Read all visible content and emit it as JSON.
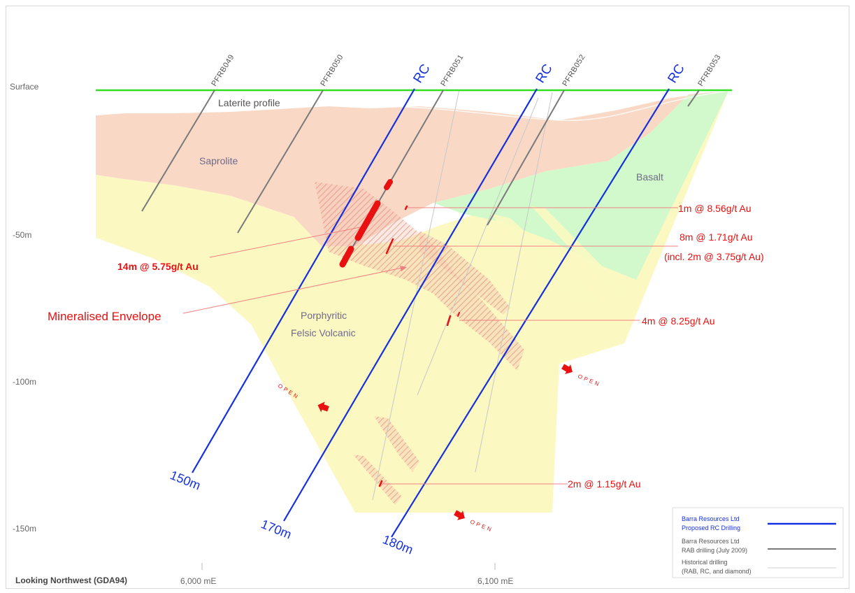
{
  "axis": {
    "depth_labels": [
      "Surface",
      "-50m",
      "-100m",
      "-150m"
    ],
    "easting_labels": [
      "6,000 mE",
      "6,100 mE"
    ]
  },
  "view_label": "Looking Northwest (GDA94)",
  "zones": {
    "laterite": "Laterite profile",
    "saprolite": "Saprolite",
    "basalt": "Basalt",
    "porphyritic_1": "Porphyritic",
    "porphyritic_2": "Felsic Volcanic"
  },
  "drillholes": [
    "PFRB049",
    "PFRB050",
    "PFRB051",
    "PFRB052",
    "PFRB053"
  ],
  "proposed_holes": [
    {
      "top_label": "RC",
      "depth_label": "150m"
    },
    {
      "top_label": "RC",
      "depth_label": "170m"
    },
    {
      "top_label": "RC",
      "depth_label": "180m"
    }
  ],
  "intercepts": {
    "i1": "1m @ 8.56g/t Au",
    "i2a": "8m @ 1.71g/t Au",
    "i2b": "(incl. 2m @ 3.75g/t Au)",
    "i3": "14m @ 5.75g/t Au",
    "i4": "4m @ 8.25g/t Au",
    "i5": "2m @ 1.15g/t Au"
  },
  "envelope_label": "Mineralised Envelope",
  "open_label": "OPEN",
  "legend": {
    "proposed_1": "Barra Resources Ltd",
    "proposed_2": "Proposed RC Drilling",
    "rab_1": "Barra Resources Ltd",
    "rab_2": "RAB drilling (July 2009)",
    "hist_1": "Historical drilling",
    "hist_2": "(RAB, RC, and diamond)"
  },
  "colors": {
    "surface": "#33dd22",
    "proposed": "#1530e0",
    "rab": "#777777",
    "historical": "#cccccc",
    "hit": "#e81010",
    "laterite": "#f9d9c6",
    "felsic": "#fbf8c2",
    "basalt": "#d2f9cb"
  }
}
